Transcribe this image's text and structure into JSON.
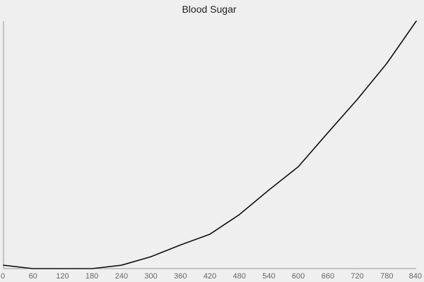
{
  "chart_data": {
    "type": "line",
    "title": "Blood Sugar",
    "xlabel": "",
    "ylabel": "",
    "x": [
      0,
      60,
      120,
      180,
      240,
      300,
      360,
      420,
      480,
      540,
      600,
      660,
      720,
      780,
      840
    ],
    "x_tick_labels": [
      "0",
      "60",
      "120",
      "180",
      "240",
      "300",
      "360",
      "420",
      "480",
      "540",
      "600",
      "660",
      "720",
      "780",
      "840"
    ],
    "series": [
      {
        "values": [
          1.5,
          0,
          0,
          0,
          1.5,
          5.3,
          10.5,
          15.3,
          24,
          34.9,
          45.3,
          60.4,
          75.2,
          91.2,
          110
        ]
      }
    ],
    "xlim": [
      0,
      840
    ],
    "ylim": [
      0,
      110
    ],
    "grid": false,
    "y_tick_labels_shown": false,
    "legend": "none",
    "line_color": "#111111",
    "background_color": "#efefef",
    "axis_color": "#9a9a9a"
  }
}
